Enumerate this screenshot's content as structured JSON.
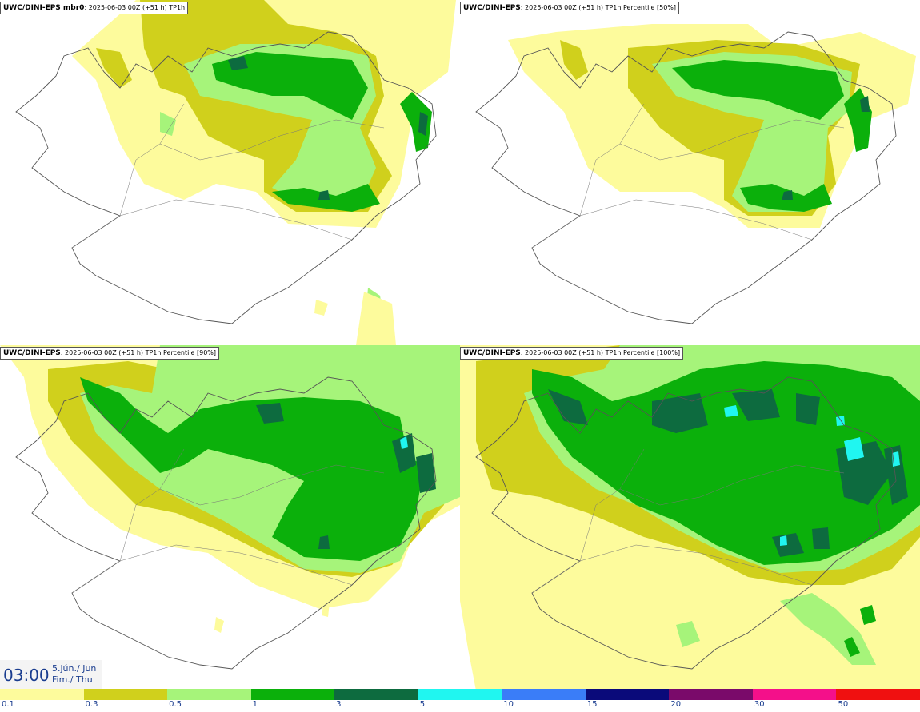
{
  "panels": [
    {
      "model": "UWC/DINI-EPS mbr0",
      "run": "2025-06-03 00Z (+51 h)",
      "field": "TP1h"
    },
    {
      "model": "UWC/DINI-EPS",
      "run": "2025-06-03 00Z (+51 h)",
      "field": "TP1h Percentile [50%]"
    },
    {
      "model": "UWC/DINI-EPS",
      "run": "2025-06-03 00Z (+51 h)",
      "field": "TP1h Percentile [90%]"
    },
    {
      "model": "UWC/DINI-EPS",
      "run": "2025-06-03 00Z (+51 h)",
      "field": "TP1h Percentile [100%]"
    }
  ],
  "valid_time": {
    "time": "03:00",
    "date_line1": "5.jún./ Jun",
    "date_line2": "Fim./ Thu"
  },
  "legend": {
    "ticks": [
      "0.1",
      "0.3",
      "0.5",
      "1",
      "3",
      "5",
      "10",
      "15",
      "20",
      "30",
      "50"
    ],
    "colors": [
      "#fdfb9c",
      "#d0d01c",
      "#a6f47a",
      "#0bb00b",
      "#0d6b3f",
      "#20f6f0",
      "#3a7df8",
      "#0a0a7a",
      "#7a0a6a",
      "#f4108a",
      "#f01010"
    ]
  },
  "map_colors": {
    "outline": "#555555",
    "light_yellow": "#fdfb9c",
    "olive": "#d0d01c",
    "light_green": "#a6f47a",
    "green": "#0bb00b",
    "dark_green": "#0d6b3f",
    "cyan": "#20f6f0"
  }
}
